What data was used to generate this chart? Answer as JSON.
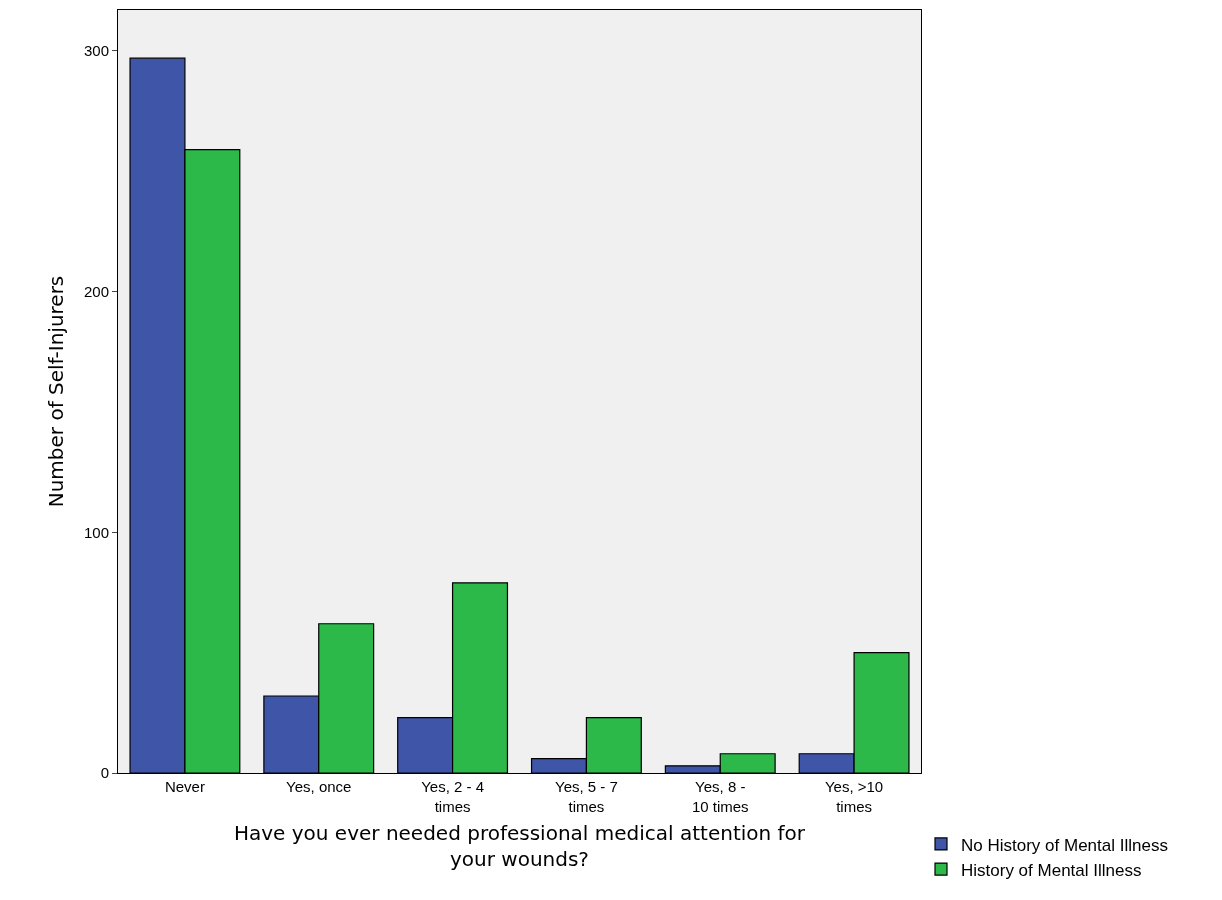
{
  "chart_data": {
    "type": "bar",
    "xlabel": "Have you ever needed professional medical attention for your wounds?",
    "ylabel": "Number of Self-Injurers",
    "categories": [
      "Never",
      "Yes, once",
      "Yes, 2 - 4 times",
      "Yes, 5 - 7 times",
      "Yes, 8 - 10 times",
      "Yes, >10 times"
    ],
    "series": [
      {
        "name": "No History of Mental Illness",
        "color": "#3f55a8",
        "values": [
          297,
          32,
          23,
          6,
          3,
          8
        ]
      },
      {
        "name": "History of Mental Illness",
        "color": "#2db84a",
        "values": [
          259,
          62,
          79,
          23,
          8,
          50
        ]
      }
    ],
    "ylim": [
      0,
      317
    ],
    "yticks": [
      0,
      100,
      200,
      300
    ],
    "grid": false,
    "legend": "bottom right"
  }
}
